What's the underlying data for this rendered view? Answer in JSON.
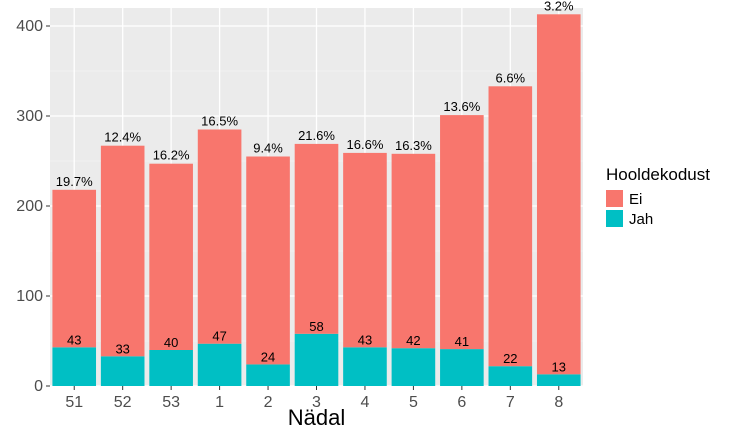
{
  "chart_data": {
    "type": "bar",
    "stacked": true,
    "xlabel": "Nädal",
    "ylabel": "",
    "ylim": [
      0,
      420
    ],
    "yticks": [
      0,
      100,
      200,
      300,
      400
    ],
    "grid": true,
    "legend_position": "right",
    "categories": [
      "51",
      "52",
      "53",
      "1",
      "2",
      "3",
      "4",
      "5",
      "6",
      "7",
      "8"
    ],
    "series": [
      {
        "name": "Jah",
        "color": "#00bfc4",
        "values": [
          43,
          33,
          40,
          47,
          24,
          58,
          43,
          42,
          41,
          22,
          13
        ]
      },
      {
        "name": "Ei",
        "color": "#f8766d",
        "values": [
          175,
          234,
          207,
          238,
          231,
          211,
          216,
          216,
          260,
          311,
          400
        ]
      }
    ],
    "totals": [
      218,
      267,
      247,
      285,
      255,
      269,
      259,
      258,
      301,
      333,
      413
    ],
    "percent_labels": [
      "19.7%",
      "12.4%",
      "16.2%",
      "16.5%",
      "9.4%",
      "21.6%",
      "16.6%",
      "16.3%",
      "13.6%",
      "6.6%",
      "3.2%"
    ],
    "legend": {
      "title": "Hooldekodust",
      "entries": [
        {
          "label": "Ei",
          "color": "#f8766d"
        },
        {
          "label": "Jah",
          "color": "#00bfc4"
        }
      ]
    }
  },
  "colors": {
    "panel_background": "#ebebeb",
    "grid_major": "#ffffff",
    "grid_minor": "#f5f5f5"
  }
}
